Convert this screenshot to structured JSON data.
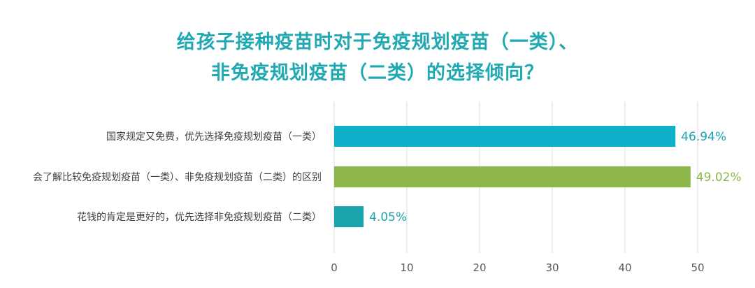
{
  "title_lines": [
    "给孩子接种疫苗时对于免疫规划疫苗（一类）、",
    "非免疫规划疫苗（二类）的选择倾向？"
  ],
  "chart_data": {
    "type": "bar",
    "orientation": "horizontal",
    "categories": [
      "国家规定又免费，优先选择免疫规划疫苗（一类）",
      "会了解比较免疫规划疫苗（一类）、非免疫规划疫苗（二类）的区别",
      "花钱的肯定是更好的，优先选择非免疫规划疫苗（二类）"
    ],
    "values": [
      46.94,
      49.02,
      4.05
    ],
    "value_labels": [
      "46.94%",
      "49.02%",
      "4.05%"
    ],
    "colors": [
      "#0fb0c9",
      "#8db54a",
      "#1aa3ad"
    ],
    "label_colors": [
      "#1aa3b4",
      "#8db54a",
      "#1aa3ad"
    ],
    "xlim": [
      0,
      50
    ],
    "xticks": [
      0,
      10,
      20,
      30,
      40,
      50
    ],
    "grid": true,
    "grid_color": "#d9d9d9",
    "legend": "none"
  }
}
